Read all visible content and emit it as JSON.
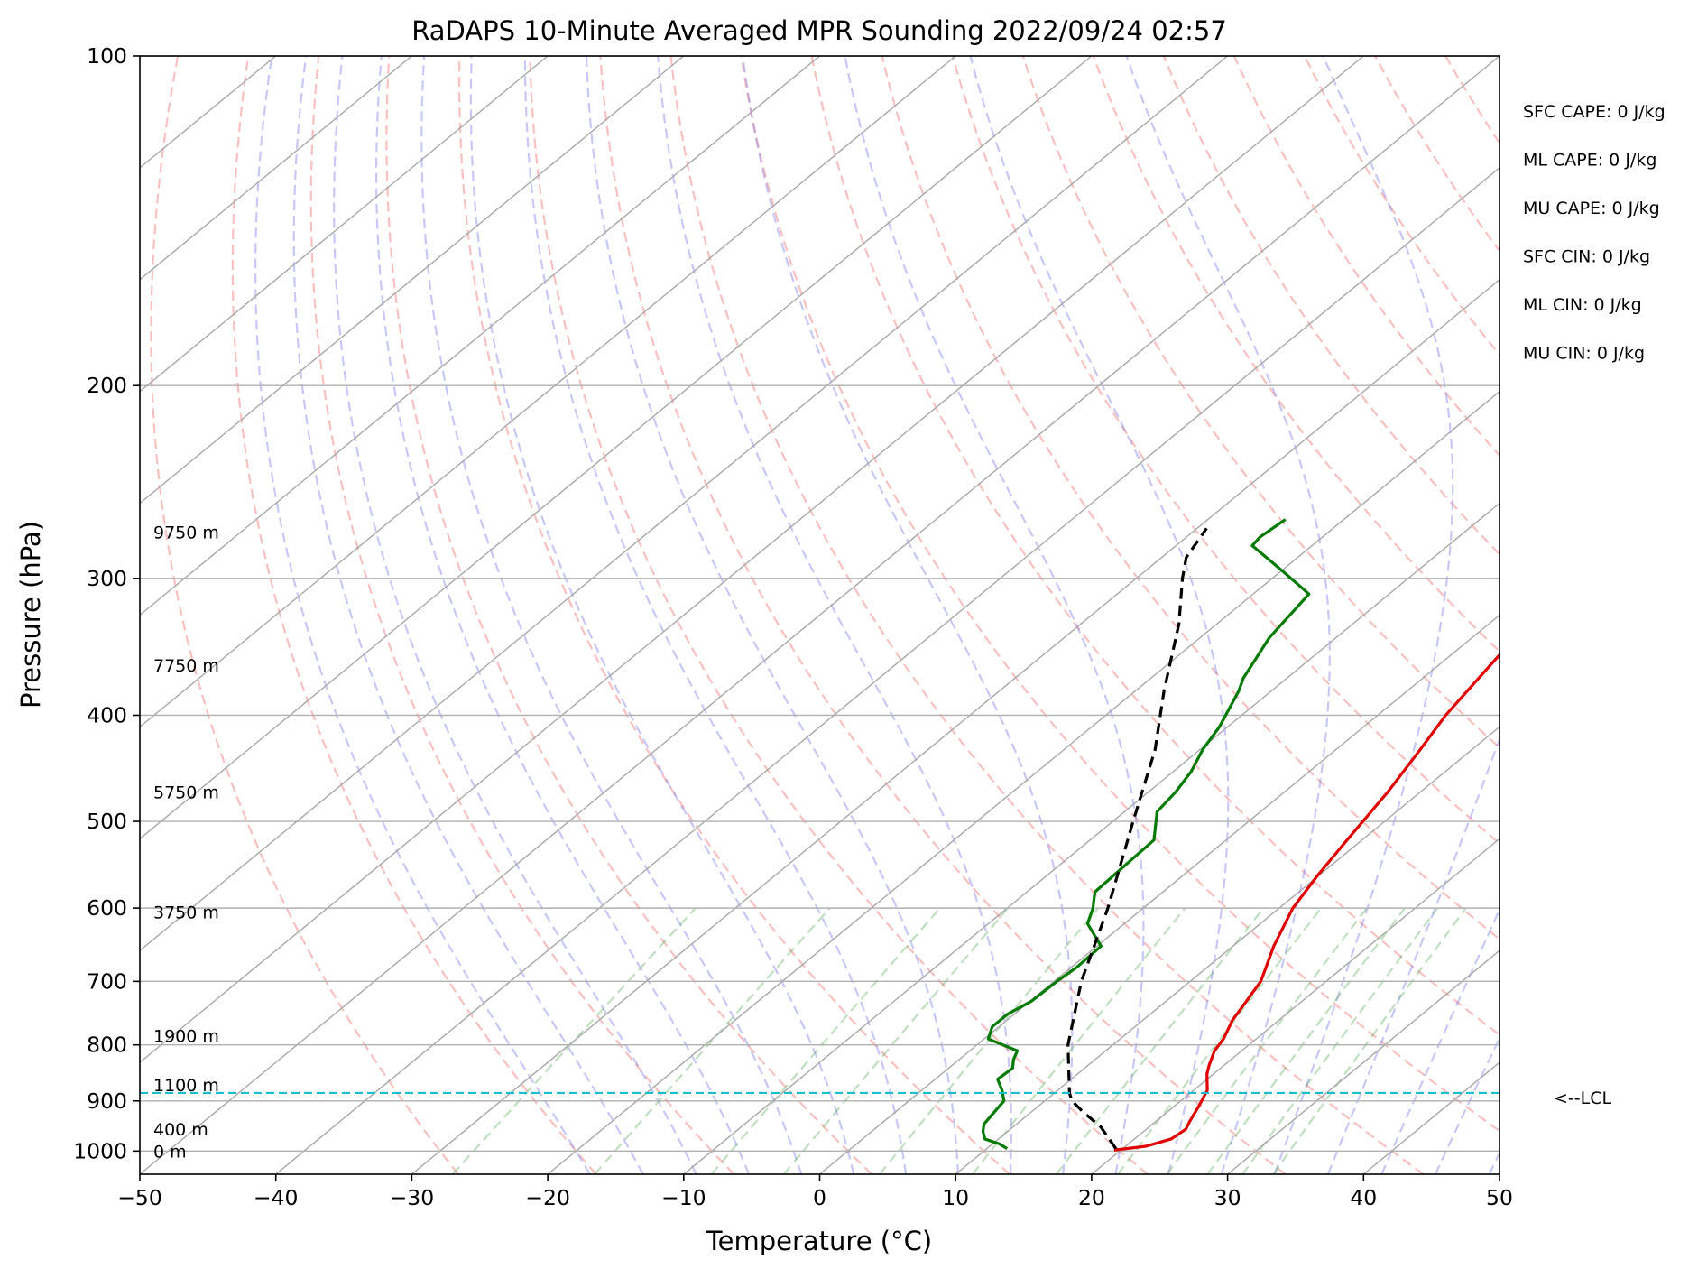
{
  "chart_data": {
    "type": "line",
    "subtype": "skew-t log-p sounding",
    "title": "RaDAPS 10-Minute Averaged MPR Sounding 2022/09/24 02:57",
    "xlabel": "Temperature (°C)",
    "ylabel": "Pressure (hPa)",
    "xlim": [
      -50,
      50
    ],
    "ylim": [
      1050,
      100
    ],
    "y_scale": "log",
    "x_ticks": [
      -50,
      -40,
      -30,
      -20,
      -10,
      0,
      10,
      20,
      30,
      40,
      50
    ],
    "x_tick_labels": [
      "−50",
      "−40",
      "−30",
      "−20",
      "−10",
      "0",
      "10",
      "20",
      "30",
      "40",
      "50"
    ],
    "y_ticks": [
      100,
      200,
      300,
      400,
      500,
      600,
      700,
      800,
      900,
      1000
    ],
    "y_tick_labels": [
      "100",
      "200",
      "300",
      "400",
      "500",
      "600",
      "700",
      "800",
      "900",
      "1000"
    ],
    "grid": true,
    "background_lines": {
      "skewed_isotherms": "grey solid",
      "dry_adiabats": "red dashed",
      "moist_adiabats": "blue dashed",
      "mixing_ratio_lines": "green dashed"
    },
    "series": [
      {
        "key": "temperature",
        "color": "#e00000",
        "points": [
          [
            998,
            19.5
          ],
          [
            990,
            21.5
          ],
          [
            975,
            22.7
          ],
          [
            955,
            22.9
          ],
          [
            940,
            22.5
          ],
          [
            910,
            21.8
          ],
          [
            880,
            21.0
          ],
          [
            860,
            20.0
          ],
          [
            850,
            19.5
          ],
          [
            835,
            18.9
          ],
          [
            810,
            18.0
          ],
          [
            790,
            17.6
          ],
          [
            760,
            16.6
          ],
          [
            700,
            15.2
          ],
          [
            650,
            13.0
          ],
          [
            600,
            11.0
          ],
          [
            560,
            9.9
          ],
          [
            520,
            8.9
          ],
          [
            470,
            7.6
          ],
          [
            430,
            6.2
          ],
          [
            400,
            5.0
          ],
          [
            360,
            3.8
          ],
          [
            320,
            2.5
          ],
          [
            290,
            1.5
          ],
          [
            273,
            1.0
          ]
        ]
      },
      {
        "key": "dewpoint",
        "color": "#007a00",
        "points": [
          [
            995,
            11.5
          ],
          [
            985,
            10.5
          ],
          [
            975,
            9.0
          ],
          [
            960,
            8.2
          ],
          [
            945,
            7.6
          ],
          [
            930,
            7.4
          ],
          [
            900,
            7.0
          ],
          [
            880,
            5.9
          ],
          [
            860,
            4.6
          ],
          [
            840,
            4.7
          ],
          [
            825,
            4.0
          ],
          [
            810,
            3.5
          ],
          [
            790,
            0.3
          ],
          [
            770,
            -0.5
          ],
          [
            750,
            -0.5
          ],
          [
            730,
            0.1
          ],
          [
            700,
            0.2
          ],
          [
            680,
            0.4
          ],
          [
            650,
            0.3
          ],
          [
            620,
            -2.7
          ],
          [
            600,
            -3.7
          ],
          [
            580,
            -5.0
          ],
          [
            540,
            -5.2
          ],
          [
            520,
            -5.3
          ],
          [
            490,
            -7.6
          ],
          [
            470,
            -8.0
          ],
          [
            450,
            -8.7
          ],
          [
            430,
            -9.8
          ],
          [
            410,
            -10.6
          ],
          [
            380,
            -12.4
          ],
          [
            370,
            -13.2
          ],
          [
            340,
            -14.9
          ],
          [
            310,
            -15.9
          ],
          [
            295,
            -20.0
          ],
          [
            280,
            -24.4
          ],
          [
            275,
            -24.6
          ],
          [
            265,
            -24.3
          ]
        ]
      },
      {
        "key": "parcel",
        "color": "#000000",
        "style": "dashed",
        "points": [
          [
            995,
            19.5
          ],
          [
            950,
            16.4
          ],
          [
            920,
            13.7
          ],
          [
            900,
            12.0
          ],
          [
            885,
            11.1
          ],
          [
            800,
            6.7
          ],
          [
            700,
            2.0
          ],
          [
            600,
            -2.6
          ],
          [
            500,
            -8.5
          ],
          [
            430,
            -13.3
          ],
          [
            380,
            -17.9
          ],
          [
            330,
            -22.8
          ],
          [
            300,
            -26.6
          ],
          [
            287,
            -28.2
          ],
          [
            270,
            -29.3
          ]
        ]
      }
    ],
    "height_labels": [
      {
        "p": 272,
        "text": "9750 m"
      },
      {
        "p": 360,
        "text": "7750 m"
      },
      {
        "p": 470,
        "text": "5750 m"
      },
      {
        "p": 605,
        "text": "3750 m"
      },
      {
        "p": 785,
        "text": "1900 m"
      },
      {
        "p": 870,
        "text": "1100 m"
      },
      {
        "p": 955,
        "text": "400 m"
      },
      {
        "p": 1000,
        "text": "0 m"
      }
    ],
    "lcl": {
      "p": 885,
      "label": "<--LCL",
      "color": "#17becf"
    },
    "indices": [
      {
        "name": "SFC CAPE",
        "text": "SFC CAPE: 0 J/kg"
      },
      {
        "name": "ML CAPE",
        "text": "ML CAPE: 0 J/kg"
      },
      {
        "name": "MU CAPE",
        "text": "MU CAPE: 0 J/kg"
      },
      {
        "name": "SFC CIN",
        "text": "SFC CIN: 0 J/kg"
      },
      {
        "name": "ML CIN",
        "text": "ML CIN: 0 J/kg"
      },
      {
        "name": "MU CIN",
        "text": "MU CIN: 0 J/kg"
      }
    ]
  }
}
